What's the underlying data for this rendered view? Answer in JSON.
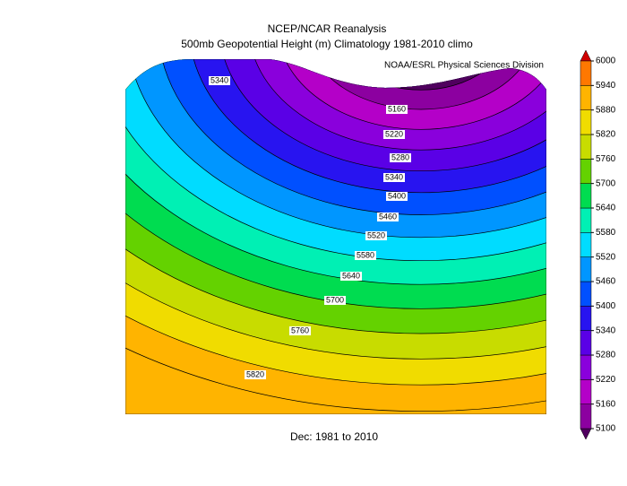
{
  "header": {
    "title": "NCEP/NCAR Reanalysis",
    "subtitle": "500mb Geopotential Height (m) Climatology 1981-2010 climo",
    "credit": "NOAA/ESRL Physical Sciences Division"
  },
  "footer": "Dec: 1981 to 2010",
  "contour_labels": [
    5340,
    5160,
    5220,
    5280,
    5340,
    5400,
    5460,
    5520,
    5580,
    5640,
    5700,
    5760,
    5820
  ],
  "colorbar": {
    "ticks": [
      5100,
      5160,
      5220,
      5280,
      5340,
      5400,
      5460,
      5520,
      5580,
      5640,
      5700,
      5760,
      5820,
      5880,
      5940,
      6000
    ],
    "colors": [
      "#50005f",
      "#8c00a0",
      "#b400c8",
      "#8a00dc",
      "#5a00e6",
      "#2814f0",
      "#0050ff",
      "#0096ff",
      "#00dcff",
      "#00f0b4",
      "#00dc50",
      "#64d200",
      "#c8dc00",
      "#f0dc00",
      "#ffb400",
      "#ff7800",
      "#d00000"
    ]
  }
}
